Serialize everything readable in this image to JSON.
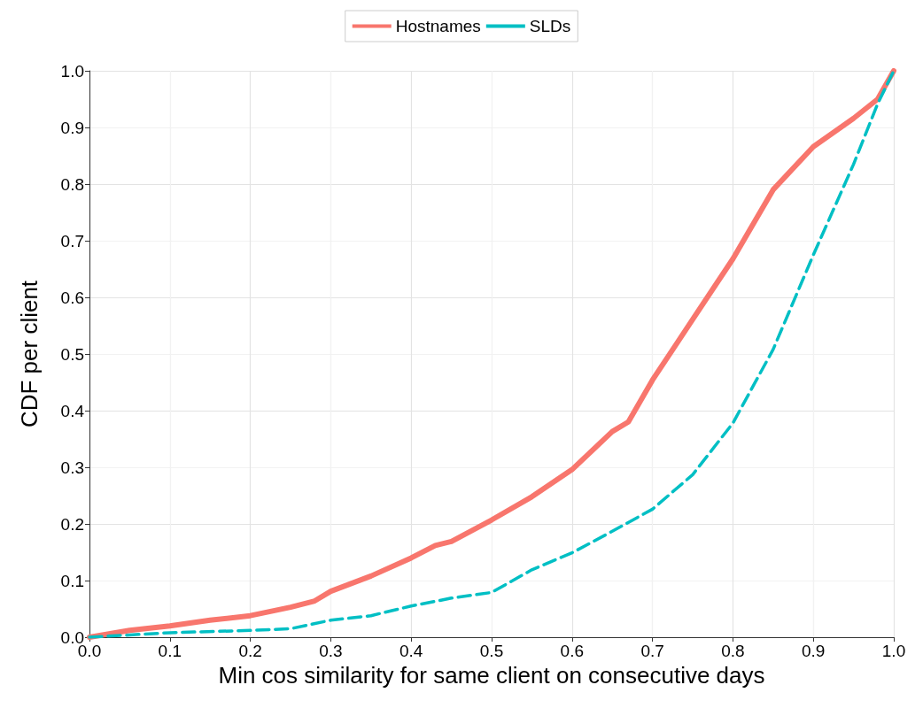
{
  "chart_data": {
    "type": "line",
    "xlabel": "Min cos similarity for same client on consecutive days",
    "ylabel": "CDF per client",
    "xlim": [
      0,
      1
    ],
    "ylim": [
      0,
      1
    ],
    "xticks": [
      {
        "value": 0,
        "label": "0.0"
      },
      {
        "value": 0.1,
        "label": "0.1"
      },
      {
        "value": 0.2,
        "label": "0.2"
      },
      {
        "value": 0.3,
        "label": "0.3"
      },
      {
        "value": 0.4,
        "label": "0.4"
      },
      {
        "value": 0.5,
        "label": "0.5"
      },
      {
        "value": 0.6,
        "label": "0.6"
      },
      {
        "value": 0.7,
        "label": "0.7"
      },
      {
        "value": 0.8,
        "label": "0.8"
      },
      {
        "value": 0.9,
        "label": "0.9"
      },
      {
        "value": 1,
        "label": "1.0"
      }
    ],
    "yticks": [
      {
        "value": 0,
        "label": "0.0"
      },
      {
        "value": 0.1,
        "label": "0.1"
      },
      {
        "value": 0.2,
        "label": "0.2"
      },
      {
        "value": 0.3,
        "label": "0.3"
      },
      {
        "value": 0.4,
        "label": "0.4"
      },
      {
        "value": 0.5,
        "label": "0.5"
      },
      {
        "value": 0.6,
        "label": "0.6"
      },
      {
        "value": 0.7,
        "label": "0.7"
      },
      {
        "value": 0.8,
        "label": "0.8"
      },
      {
        "value": 0.9,
        "label": "0.9"
      },
      {
        "value": 1,
        "label": "1.0"
      }
    ],
    "grid": true,
    "legend": "top",
    "marker": "none",
    "series": [
      {
        "name": "Hostnames",
        "color": "#f8766d",
        "line_style": "solid",
        "x": [
          0,
          0.05,
          0.1,
          0.15,
          0.2,
          0.25,
          0.28,
          0.3,
          0.35,
          0.4,
          0.43,
          0.45,
          0.5,
          0.55,
          0.6,
          0.65,
          0.67,
          0.7,
          0.75,
          0.8,
          0.85,
          0.9,
          0.95,
          0.98,
          1
        ],
        "values": [
          0,
          0.012,
          0.02,
          0.03,
          0.038,
          0.053,
          0.064,
          0.081,
          0.108,
          0.14,
          0.162,
          0.169,
          0.207,
          0.248,
          0.296,
          0.363,
          0.38,
          0.454,
          0.561,
          0.668,
          0.79,
          0.866,
          0.916,
          0.95,
          1
        ]
      },
      {
        "name": "SLDs",
        "color": "#00bfc4",
        "line_style": "dashed",
        "x": [
          0,
          0.1,
          0.2,
          0.25,
          0.3,
          0.35,
          0.4,
          0.45,
          0.5,
          0.55,
          0.6,
          0.65,
          0.7,
          0.75,
          0.8,
          0.85,
          0.9,
          0.95,
          0.98,
          1
        ],
        "values": [
          0,
          0.008,
          0.012,
          0.015,
          0.03,
          0.038,
          0.055,
          0.069,
          0.079,
          0.119,
          0.149,
          0.187,
          0.226,
          0.287,
          0.378,
          0.508,
          0.675,
          0.835,
          0.942,
          1
        ]
      }
    ]
  }
}
